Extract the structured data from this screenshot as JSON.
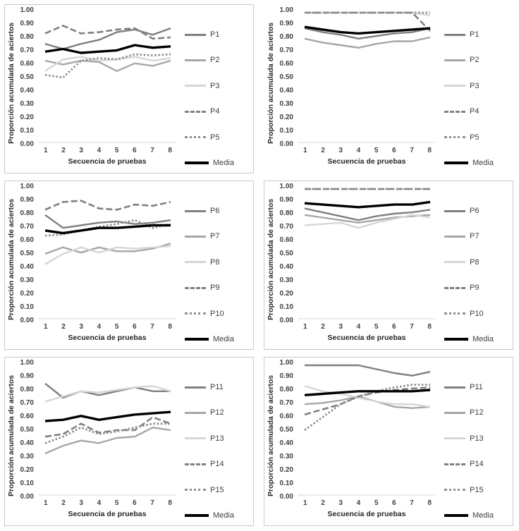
{
  "axis": {
    "y_ticks": [
      "1.00",
      "0.90",
      "0.80",
      "0.70",
      "0.60",
      "0.50",
      "0.40",
      "0.30",
      "0.20",
      "0.10",
      "0.00"
    ],
    "x_ticks": [
      "1",
      "2",
      "3",
      "4",
      "5",
      "6",
      "7",
      "8"
    ]
  },
  "colors": {
    "s1": "#7f7f7f",
    "s2": "#a6a6a6",
    "s3": "#d6d6d6",
    "s4": "#808080",
    "s5": "#8f8f8f",
    "media": "#000000",
    "axis_line": "#d9d9d9"
  },
  "chart_data": [
    {
      "type": "line",
      "x": [
        1,
        2,
        3,
        4,
        5,
        6,
        7,
        8
      ],
      "xlabel": "Secuencia de pruebas",
      "ylabel": "Proporción acumulada de aciertos",
      "ylim": [
        0,
        1
      ],
      "grid": false,
      "legend_position": "right",
      "series": [
        {
          "name": "P1",
          "style": "solid",
          "color": "#7f7f7f",
          "width": 2.4,
          "values": [
            0.76,
            0.72,
            0.76,
            0.79,
            0.85,
            0.87,
            0.83,
            0.88
          ]
        },
        {
          "name": "P2",
          "style": "solid",
          "color": "#a6a6a6",
          "width": 2.4,
          "values": [
            0.63,
            0.6,
            0.63,
            0.62,
            0.55,
            0.61,
            0.59,
            0.63
          ]
        },
        {
          "name": "P3",
          "style": "solid",
          "color": "#d6d6d6",
          "width": 2.4,
          "values": [
            0.55,
            0.64,
            0.66,
            0.63,
            0.64,
            0.66,
            0.63,
            0.65
          ]
        },
        {
          "name": "P4",
          "style": "dashed",
          "color": "#808080",
          "width": 2.6,
          "values": [
            0.84,
            0.9,
            0.84,
            0.85,
            0.87,
            0.88,
            0.8,
            0.81
          ]
        },
        {
          "name": "P5",
          "style": "dotted",
          "color": "#8f8f8f",
          "width": 2.8,
          "values": [
            0.52,
            0.5,
            0.63,
            0.65,
            0.64,
            0.68,
            0.67,
            0.68
          ]
        },
        {
          "name": "Media",
          "style": "solid",
          "color": "#000000",
          "width": 3.4,
          "values": [
            0.7,
            0.72,
            0.69,
            0.7,
            0.71,
            0.75,
            0.73,
            0.74
          ]
        }
      ]
    },
    {
      "type": "line",
      "x": [
        1,
        2,
        3,
        4,
        5,
        6,
        7,
        8
      ],
      "xlabel": "Secuencia de pruebas",
      "ylabel": "Proporción acumulada de aciertos",
      "ylim": [
        0,
        1
      ],
      "grid": false,
      "legend_position": "right",
      "series": [
        {
          "name": "P1",
          "style": "solid",
          "color": "#7f7f7f",
          "width": 2.4,
          "values": [
            0.88,
            0.85,
            0.83,
            0.8,
            0.82,
            0.84,
            0.85,
            0.88
          ]
        },
        {
          "name": "P2",
          "style": "solid",
          "color": "#a6a6a6",
          "width": 2.4,
          "values": [
            0.8,
            0.77,
            0.75,
            0.73,
            0.76,
            0.78,
            0.78,
            0.81
          ]
        },
        {
          "name": "P3",
          "style": "solid",
          "color": "#d6d6d6",
          "width": 2.4,
          "values": [
            1.0,
            1.0,
            1.0,
            1.0,
            1.0,
            1.0,
            1.0,
            0.98
          ]
        },
        {
          "name": "P4",
          "style": "dashed",
          "color": "#808080",
          "width": 2.6,
          "values": [
            1.0,
            1.0,
            1.0,
            1.0,
            1.0,
            1.0,
            1.0,
            0.86
          ]
        },
        {
          "name": "P5",
          "style": "dotted",
          "color": "#8f8f8f",
          "width": 2.8,
          "values": [
            1.0,
            1.0,
            1.0,
            1.0,
            1.0,
            1.0,
            1.0,
            1.0
          ]
        },
        {
          "name": "Media",
          "style": "solid",
          "color": "#000000",
          "width": 3.4,
          "values": [
            0.89,
            0.87,
            0.85,
            0.84,
            0.85,
            0.86,
            0.87,
            0.88
          ]
        }
      ]
    },
    {
      "type": "line",
      "x": [
        1,
        2,
        3,
        4,
        5,
        6,
        7,
        8
      ],
      "xlabel": "Secuencia de pruebas",
      "ylabel": "Proporción acumulada de aciertos",
      "ylim": [
        0,
        1
      ],
      "grid": false,
      "legend_position": "right",
      "series": [
        {
          "name": "P6",
          "style": "solid",
          "color": "#7f7f7f",
          "width": 2.4,
          "values": [
            0.8,
            0.7,
            0.72,
            0.74,
            0.75,
            0.73,
            0.74,
            0.76
          ]
        },
        {
          "name": "P7",
          "style": "solid",
          "color": "#a6a6a6",
          "width": 2.4,
          "values": [
            0.5,
            0.55,
            0.51,
            0.55,
            0.52,
            0.52,
            0.54,
            0.58
          ]
        },
        {
          "name": "P8",
          "style": "solid",
          "color": "#d6d6d6",
          "width": 2.4,
          "values": [
            0.42,
            0.5,
            0.55,
            0.51,
            0.55,
            0.54,
            0.55,
            0.56
          ]
        },
        {
          "name": "P9",
          "style": "dashed",
          "color": "#808080",
          "width": 2.6,
          "values": [
            0.84,
            0.9,
            0.91,
            0.85,
            0.84,
            0.88,
            0.87,
            0.9
          ]
        },
        {
          "name": "P10",
          "style": "dotted",
          "color": "#8f8f8f",
          "width": 2.8,
          "values": [
            0.64,
            0.65,
            0.68,
            0.71,
            0.73,
            0.76,
            0.7,
            0.73
          ]
        },
        {
          "name": "Media",
          "style": "solid",
          "color": "#000000",
          "width": 3.4,
          "values": [
            0.68,
            0.66,
            0.68,
            0.7,
            0.7,
            0.71,
            0.72,
            0.72
          ]
        }
      ]
    },
    {
      "type": "line",
      "x": [
        1,
        2,
        3,
        4,
        5,
        6,
        7,
        8
      ],
      "xlabel": "Secuencia de pruebas",
      "ylabel": "Proporción acumulada de aciertos",
      "ylim": [
        0,
        1
      ],
      "grid": false,
      "legend_position": "right",
      "series": [
        {
          "name": "P6",
          "style": "solid",
          "color": "#7f7f7f",
          "width": 2.4,
          "values": [
            0.85,
            0.82,
            0.79,
            0.76,
            0.79,
            0.81,
            0.82,
            0.84
          ]
        },
        {
          "name": "P7",
          "style": "solid",
          "color": "#a6a6a6",
          "width": 2.4,
          "values": [
            0.8,
            0.78,
            0.76,
            0.74,
            0.76,
            0.78,
            0.79,
            0.8
          ]
        },
        {
          "name": "P8",
          "style": "solid",
          "color": "#d6d6d6",
          "width": 2.4,
          "values": [
            0.72,
            0.73,
            0.74,
            0.7,
            0.74,
            0.77,
            0.8,
            0.78
          ]
        },
        {
          "name": "P9",
          "style": "dashed",
          "color": "#808080",
          "width": 2.6,
          "values": [
            1.0,
            1.0,
            1.0,
            1.0,
            1.0,
            1.0,
            1.0,
            1.0
          ]
        },
        {
          "name": "P10",
          "style": "dotted",
          "color": "#8f8f8f",
          "width": 2.8,
          "values": [
            1.0,
            1.0,
            1.0,
            1.0,
            1.0,
            1.0,
            1.0,
            1.0
          ]
        },
        {
          "name": "Media",
          "style": "solid",
          "color": "#000000",
          "width": 3.4,
          "values": [
            0.89,
            0.88,
            0.87,
            0.86,
            0.87,
            0.88,
            0.88,
            0.9
          ]
        }
      ]
    },
    {
      "type": "line",
      "x": [
        1,
        2,
        3,
        4,
        5,
        6,
        7,
        8
      ],
      "xlabel": "Secuencia de pruebas",
      "ylabel": "Proporción acumulada de aciertos",
      "ylim": [
        0,
        1
      ],
      "grid": false,
      "legend_position": "right",
      "series": [
        {
          "name": "P11",
          "style": "solid",
          "color": "#7f7f7f",
          "width": 2.4,
          "values": [
            0.86,
            0.75,
            0.8,
            0.77,
            0.8,
            0.83,
            0.8,
            0.8
          ]
        },
        {
          "name": "P12",
          "style": "solid",
          "color": "#a6a6a6",
          "width": 2.4,
          "values": [
            0.32,
            0.38,
            0.42,
            0.4,
            0.44,
            0.45,
            0.52,
            0.5
          ]
        },
        {
          "name": "P13",
          "style": "solid",
          "color": "#d6d6d6",
          "width": 2.4,
          "values": [
            0.72,
            0.76,
            0.8,
            0.79,
            0.81,
            0.83,
            0.84,
            0.8
          ]
        },
        {
          "name": "P14",
          "style": "dashed",
          "color": "#808080",
          "width": 2.6,
          "values": [
            0.45,
            0.47,
            0.55,
            0.48,
            0.5,
            0.5,
            0.6,
            0.55
          ]
        },
        {
          "name": "P15",
          "style": "dotted",
          "color": "#8f8f8f",
          "width": 2.8,
          "values": [
            0.4,
            0.45,
            0.52,
            0.47,
            0.49,
            0.52,
            0.55,
            0.55
          ]
        },
        {
          "name": "Media",
          "style": "solid",
          "color": "#000000",
          "width": 3.4,
          "values": [
            0.57,
            0.58,
            0.61,
            0.58,
            0.6,
            0.62,
            0.63,
            0.64
          ]
        }
      ]
    },
    {
      "type": "line",
      "x": [
        1,
        2,
        3,
        4,
        5,
        6,
        7,
        8
      ],
      "xlabel": "Secuencia de pruebas",
      "ylabel": "Proporción acumulada de aciertos",
      "ylim": [
        0,
        1
      ],
      "grid": false,
      "legend_position": "right",
      "series": [
        {
          "name": "P11",
          "style": "solid",
          "color": "#7f7f7f",
          "width": 2.4,
          "values": [
            1.0,
            1.0,
            1.0,
            1.0,
            0.97,
            0.94,
            0.92,
            0.95
          ]
        },
        {
          "name": "P12",
          "style": "solid",
          "color": "#a6a6a6",
          "width": 2.4,
          "values": [
            0.7,
            0.71,
            0.73,
            0.76,
            0.72,
            0.68,
            0.67,
            0.68
          ]
        },
        {
          "name": "P13",
          "style": "solid",
          "color": "#d6d6d6",
          "width": 2.4,
          "values": [
            0.84,
            0.8,
            0.78,
            0.75,
            0.72,
            0.7,
            0.7,
            0.68
          ]
        },
        {
          "name": "P14",
          "style": "dashed",
          "color": "#808080",
          "width": 2.6,
          "values": [
            0.62,
            0.66,
            0.7,
            0.76,
            0.79,
            0.81,
            0.82,
            0.83
          ]
        },
        {
          "name": "P15",
          "style": "dotted",
          "color": "#8f8f8f",
          "width": 2.8,
          "values": [
            0.5,
            0.6,
            0.7,
            0.76,
            0.8,
            0.83,
            0.85,
            0.85
          ]
        },
        {
          "name": "Media",
          "style": "solid",
          "color": "#000000",
          "width": 3.4,
          "values": [
            0.77,
            0.78,
            0.79,
            0.8,
            0.8,
            0.8,
            0.8,
            0.81
          ]
        }
      ]
    }
  ]
}
